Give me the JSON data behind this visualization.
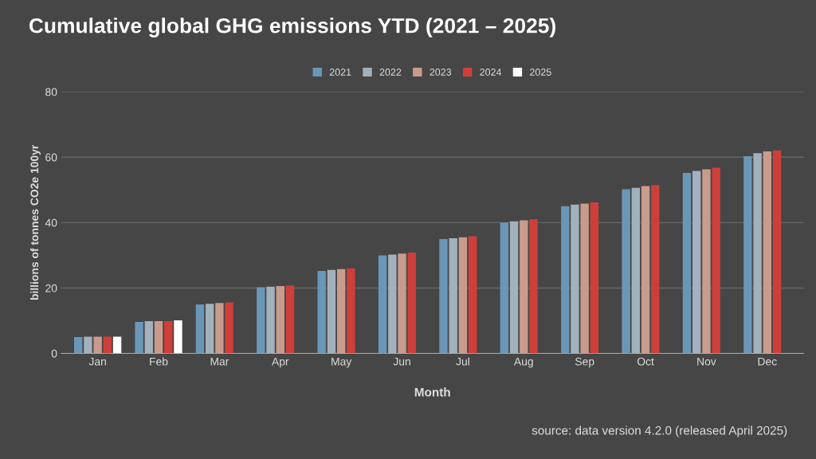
{
  "chart_data": {
    "type": "bar",
    "title": "Cumulative global GHG emissions YTD (2021 – 2025)",
    "xlabel": "Month",
    "ylabel": "billions of tonnes CO2e 100yr",
    "categories": [
      "Jan",
      "Feb",
      "Mar",
      "Apr",
      "May",
      "Jun",
      "Jul",
      "Aug",
      "Sep",
      "Oct",
      "Nov",
      "Dec"
    ],
    "series": [
      {
        "name": "2021",
        "color": "#6a97b8",
        "values": [
          5.0,
          9.6,
          15.0,
          20.2,
          25.2,
          30.0,
          35.0,
          40.0,
          45.0,
          50.2,
          55.2,
          60.3
        ]
      },
      {
        "name": "2022",
        "color": "#a3b1bd",
        "values": [
          5.1,
          9.9,
          15.2,
          20.4,
          25.5,
          30.2,
          35.2,
          40.4,
          45.5,
          50.6,
          55.8,
          61.2
        ]
      },
      {
        "name": "2023",
        "color": "#c99b8c",
        "values": [
          5.1,
          9.9,
          15.4,
          20.6,
          25.8,
          30.5,
          35.5,
          40.7,
          45.8,
          51.2,
          56.3,
          61.8
        ]
      },
      {
        "name": "2024",
        "color": "#cf3f3a",
        "values": [
          5.1,
          9.9,
          15.6,
          20.8,
          26.0,
          30.8,
          35.8,
          41.0,
          46.2,
          51.5,
          56.8,
          62.1
        ]
      },
      {
        "name": "2025",
        "color": "#ffffff",
        "values": [
          5.1,
          10.1,
          null,
          null,
          null,
          null,
          null,
          null,
          null,
          null,
          null,
          null
        ]
      }
    ],
    "ylim": [
      0,
      80
    ],
    "yticks": [
      0,
      20,
      40,
      60,
      80
    ],
    "grid": "y",
    "legend": "top",
    "annotations": [
      "source: data version 4.2.0 (released April 2025)"
    ]
  }
}
